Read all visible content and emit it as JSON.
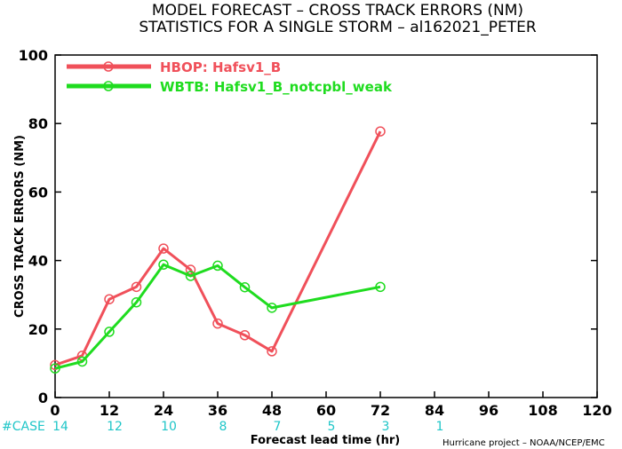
{
  "chart_data": {
    "type": "line",
    "title": "MODEL FORECAST – CROSS TRACK ERRORS (NM)",
    "subtitle": "STATISTICS FOR A SINGLE STORM – al162021_PETER",
    "xlabel": "Forecast lead time (hr)",
    "ylabel": "CROSS TRACK ERRORS (NM)",
    "xlim": [
      0,
      120
    ],
    "ylim": [
      0,
      100
    ],
    "x_ticks": [
      0,
      12,
      24,
      36,
      48,
      60,
      72,
      84,
      96,
      108,
      120
    ],
    "y_ticks": [
      0,
      20,
      40,
      60,
      80,
      100
    ],
    "legend_position": "top-left",
    "grid": false,
    "series": [
      {
        "name": "HBOP: Hafsv1_B",
        "color": "#f0505a",
        "x": [
          0,
          6,
          12,
          18,
          24,
          30,
          36,
          42,
          48,
          72
        ],
        "y": [
          9.5,
          12.2,
          28.7,
          32.3,
          43.5,
          37.3,
          21.6,
          18.2,
          13.5,
          77.7
        ]
      },
      {
        "name": "WBTB: Hafsv1_B_notcpbl_weak",
        "color": "#1fdc1f",
        "x": [
          0,
          6,
          12,
          18,
          24,
          30,
          36,
          42,
          48,
          72
        ],
        "y": [
          8.5,
          10.5,
          19.2,
          27.8,
          38.8,
          35.5,
          38.5,
          32.2,
          26.2,
          32.3
        ]
      }
    ],
    "case_counts": {
      "label": "#CASE",
      "x": [
        0,
        12,
        24,
        36,
        48,
        60,
        72,
        84
      ],
      "values": [
        "14",
        "12",
        "10",
        "8",
        "7",
        "5",
        "3",
        "1"
      ]
    },
    "credit": "Hurricane project – NOAA/NCEP/EMC"
  }
}
